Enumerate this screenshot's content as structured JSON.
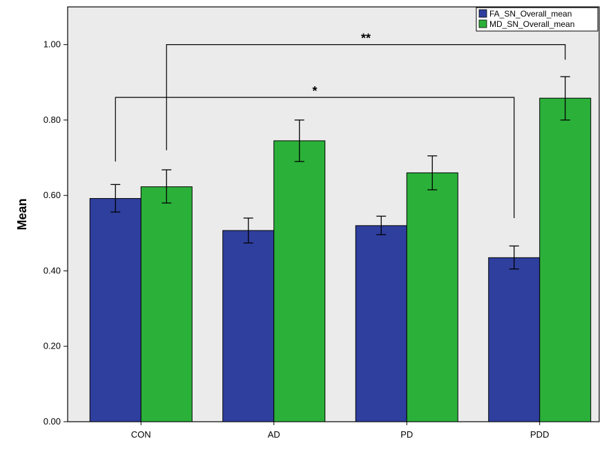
{
  "chart_data": {
    "type": "bar",
    "title": "",
    "xlabel": "",
    "ylabel": "Mean",
    "ylim": [
      0,
      1.1
    ],
    "yticks": [
      0.0,
      0.2,
      0.4,
      0.6,
      0.8,
      1.0
    ],
    "ytick_labels": [
      "0.00",
      "0.20",
      "0.40",
      "0.60",
      "0.80",
      "1.00"
    ],
    "categories": [
      "CON",
      "AD",
      "PD",
      "PDD"
    ],
    "series": [
      {
        "name": "FA_SN_Overall_mean",
        "color": "#2f3f9e",
        "values": [
          0.592,
          0.507,
          0.52,
          0.435
        ],
        "error_low": [
          0.556,
          0.474,
          0.496,
          0.405
        ],
        "error_high": [
          0.629,
          0.54,
          0.545,
          0.466
        ]
      },
      {
        "name": "MD_SN_Overall_mean",
        "color": "#2bb03a",
        "values": [
          0.623,
          0.745,
          0.66,
          0.858
        ],
        "error_low": [
          0.58,
          0.69,
          0.615,
          0.8
        ],
        "error_high": [
          0.668,
          0.8,
          0.705,
          0.915
        ]
      }
    ],
    "legend": {
      "position": "top-right"
    },
    "grid": false,
    "annotations": [
      {
        "label": "**",
        "from": {
          "category": "CON",
          "series": 1
        },
        "to": {
          "category": "PDD",
          "series": 1
        },
        "bracket_y": 1.0,
        "from_end_y": 0.72,
        "to_end_y": 0.96
      },
      {
        "label": "*",
        "from": {
          "category": "CON",
          "series": 0
        },
        "to": {
          "category": "PDD",
          "series": 0
        },
        "bracket_y": 0.86,
        "from_end_y": 0.69,
        "to_end_y": 0.54
      }
    ]
  },
  "colors": {
    "plot_background": "#ebebeb",
    "axis": "#000000"
  }
}
